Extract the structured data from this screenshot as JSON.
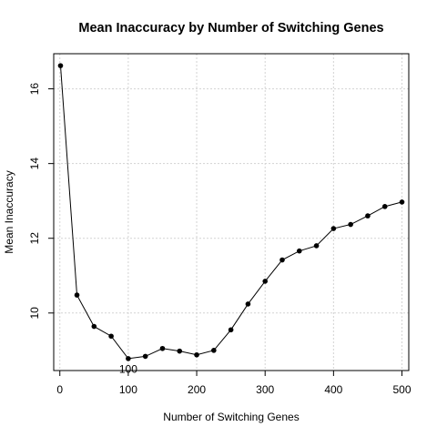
{
  "chart_data": {
    "type": "line",
    "title": "Mean Inaccuracy by Number of Switching Genes",
    "xlabel": "Number of Switching Genes",
    "ylabel": "Mean Inaccuracy",
    "x": [
      1,
      25,
      50,
      75,
      100,
      125,
      150,
      175,
      200,
      225,
      250,
      275,
      300,
      325,
      350,
      375,
      400,
      425,
      450,
      475,
      500
    ],
    "values": [
      16.62,
      10.48,
      9.64,
      9.38,
      8.78,
      8.84,
      9.05,
      8.98,
      8.88,
      9.0,
      9.55,
      10.24,
      10.85,
      11.42,
      11.66,
      11.8,
      12.26,
      12.37,
      12.6,
      12.85,
      12.97
    ],
    "xlim": [
      -8.96,
      509.96
    ],
    "ylim": [
      8.46,
      16.94
    ],
    "xticks": [
      0,
      100,
      200,
      300,
      400,
      500
    ],
    "yticks": [
      10,
      12,
      14,
      16
    ],
    "grid": true,
    "annotations": [
      {
        "text": "100",
        "x": 100,
        "y": 8.55
      }
    ]
  }
}
